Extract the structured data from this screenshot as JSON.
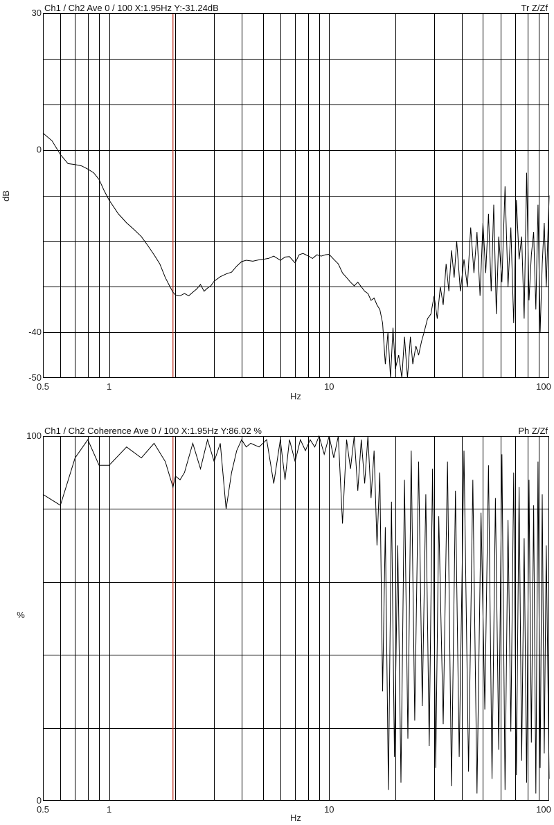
{
  "colors": {
    "background": "#ffffff",
    "grid": "#000000",
    "trace": "#000000",
    "cursor": "#c0392b"
  },
  "chart_data": [
    {
      "type": "line",
      "panel": "transfer",
      "header_left": "Ch1 / Ch2  Ave 0 / 100  X:1.95Hz  Y:-31.24dB",
      "header_right": "Tr Z/Zf",
      "xlabel": "Hz",
      "ylabel": "dB",
      "xscale": "log",
      "xlim": [
        0.5,
        100
      ],
      "ylim": [
        -50,
        30
      ],
      "x_ticks": [
        "0.5",
        "1",
        "10",
        "100"
      ],
      "y_ticks": [
        "30",
        "0",
        "-40",
        "-50"
      ],
      "grid": true,
      "cursor_x": 1.95,
      "series": [
        {
          "x": [
            0.5,
            0.55,
            0.6,
            0.65,
            0.7,
            0.75,
            0.8,
            0.85,
            0.9,
            0.95,
            1.0,
            1.1,
            1.2,
            1.3,
            1.4,
            1.5,
            1.6,
            1.7,
            1.8,
            1.9,
            1.95,
            2.0,
            2.1,
            2.2,
            2.3,
            2.4,
            2.5,
            2.6,
            2.7,
            2.8,
            2.9,
            3.0,
            3.2,
            3.4,
            3.6,
            3.8,
            4.0,
            4.2,
            4.5,
            4.8,
            5.0,
            5.3,
            5.6,
            6.0,
            6.3,
            6.6,
            7.0,
            7.3,
            7.6,
            8.0,
            8.4,
            8.8,
            9.2,
            9.6,
            10.0,
            10.5,
            11.0,
            11.5,
            12.0,
            12.5,
            13.0,
            13.5,
            14.0,
            14.5,
            15.0,
            15.5,
            16.0,
            16.5,
            17.0,
            17.5,
            18.0,
            18.5,
            19.0,
            19.5,
            20.0,
            20.7,
            21.4,
            22.0,
            22.7,
            23.4,
            24.0,
            24.8,
            25.5,
            26.3,
            27.0,
            28.0,
            29.0,
            30.0,
            31.0,
            32.0,
            33.0,
            34.0,
            35.0,
            36.0,
            37.0,
            38.0,
            39.5,
            41.0,
            42.5,
            44.0,
            45.5,
            47.0,
            48.5,
            50.0,
            51.5,
            53.0,
            54.5,
            56.0,
            57.5,
            59.0,
            61.0,
            63.0,
            65.0,
            67.0,
            69.0,
            71.0,
            73.0,
            75.0,
            77.0,
            79.0,
            81.0,
            83.0,
            85.0,
            87.0,
            89.0,
            91.0,
            93.0,
            95.0,
            97.0,
            100.0
          ],
          "y": [
            3.7,
            2,
            -1,
            -3,
            -3.2,
            -3.5,
            -4.2,
            -5,
            -6.5,
            -9,
            -11,
            -14,
            -16,
            -17.5,
            -19,
            -21,
            -23,
            -25,
            -28,
            -30.2,
            -31.2,
            -31.8,
            -32,
            -31.5,
            -32,
            -31.2,
            -30.5,
            -29.5,
            -31,
            -30.3,
            -29.8,
            -28.8,
            -27.8,
            -27.2,
            -26.8,
            -25.5,
            -24.5,
            -24.2,
            -24.4,
            -24.1,
            -24,
            -23.8,
            -23.3,
            -24.2,
            -23.5,
            -23.4,
            -24.8,
            -23,
            -22.7,
            -23.2,
            -23.8,
            -23,
            -23.3,
            -23,
            -22.9,
            -24,
            -25,
            -27,
            -28,
            -29,
            -29.8,
            -29,
            -30,
            -31,
            -31.5,
            -33,
            -32.5,
            -34,
            -35,
            -38,
            -47,
            -40,
            -50,
            -39,
            -48,
            -45,
            -50,
            -41,
            -50,
            -41,
            -47,
            -43,
            -45,
            -42,
            -40,
            -37,
            -36,
            -32,
            -37,
            -30,
            -34,
            -25,
            -31,
            -22,
            -28,
            -20,
            -31,
            -24,
            -30,
            -17,
            -27,
            -18,
            -32,
            -16,
            -27,
            -14,
            -31,
            -12,
            -36,
            -19,
            -29,
            -8,
            -30,
            -17,
            -38,
            -11,
            -24,
            -19,
            -37,
            -5,
            -33,
            -23,
            -18,
            -35,
            -12,
            -40,
            -25,
            -16,
            -30,
            -10
          ],
          "color": "#000000"
        }
      ]
    },
    {
      "type": "line",
      "panel": "coherence",
      "header_left": "Ch1 / Ch2  Coherence Ave 0 / 100  X:1.95Hz  Y:86.02 %",
      "header_right": "Ph Z/Zf",
      "xlabel": "Hz",
      "ylabel": "%",
      "xscale": "log",
      "xlim": [
        0.5,
        100
      ],
      "ylim": [
        0,
        100
      ],
      "x_ticks": [
        "0.5",
        "1",
        "10",
        "100"
      ],
      "y_ticks": [
        "100",
        "0"
      ],
      "grid": true,
      "cursor_x": 1.95,
      "series": [
        {
          "x": [
            0.5,
            0.6,
            0.7,
            0.8,
            0.9,
            1.0,
            1.2,
            1.4,
            1.6,
            1.8,
            1.95,
            2.0,
            2.1,
            2.2,
            2.4,
            2.6,
            2.8,
            3.0,
            3.2,
            3.4,
            3.6,
            3.8,
            4.0,
            4.2,
            4.4,
            4.8,
            5.2,
            5.6,
            6.0,
            6.3,
            6.6,
            7.0,
            7.4,
            7.8,
            8.2,
            8.6,
            9.0,
            9.5,
            10.0,
            10.5,
            11.0,
            11.5,
            12.0,
            12.5,
            13.0,
            13.5,
            14.0,
            14.5,
            15.0,
            15.5,
            16.0,
            16.5,
            17.0,
            17.5,
            18.0,
            18.6,
            19.2,
            19.8,
            20.5,
            21.2,
            22.0,
            22.8,
            23.6,
            24.5,
            25.5,
            26.5,
            27.5,
            28.5,
            29.5,
            30.5,
            31.5,
            33.0,
            34.5,
            36.0,
            37.5,
            39.0,
            41.0,
            43.0,
            45.0,
            47.0,
            49.0,
            51.0,
            53.0,
            55.0,
            57.0,
            59.0,
            61.0,
            63.0,
            65.0,
            67.0,
            69.0,
            71.0,
            73.0,
            75.0,
            77.0,
            79.0,
            81.0,
            83.0,
            85.0,
            87.0,
            89.0,
            91.0,
            93.0,
            95.0,
            97.0,
            100.0
          ],
          "y": [
            84,
            81,
            94,
            99,
            92,
            92,
            97,
            94,
            98,
            93,
            86,
            89,
            88,
            90,
            98,
            91,
            99,
            93,
            98,
            80,
            90,
            96,
            99,
            97,
            98,
            97,
            99,
            87,
            99,
            88,
            99,
            93,
            99,
            96,
            99,
            97,
            100,
            95,
            100,
            94,
            100,
            76,
            99,
            91,
            100,
            85,
            99,
            87,
            100,
            83,
            96,
            70,
            90,
            30,
            75,
            3,
            82,
            12,
            70,
            5,
            88,
            17,
            96,
            22,
            93,
            26,
            84,
            15,
            91,
            9,
            78,
            21,
            93,
            4,
            85,
            12,
            96,
            8,
            88,
            2,
            79,
            25,
            92,
            6,
            83,
            14,
            95,
            3,
            77,
            19,
            90,
            7,
            86,
            11,
            72,
            5,
            88,
            16,
            81,
            2,
            93,
            9,
            84,
            13,
            70,
            6
          ],
          "color": "#000000"
        }
      ]
    }
  ]
}
